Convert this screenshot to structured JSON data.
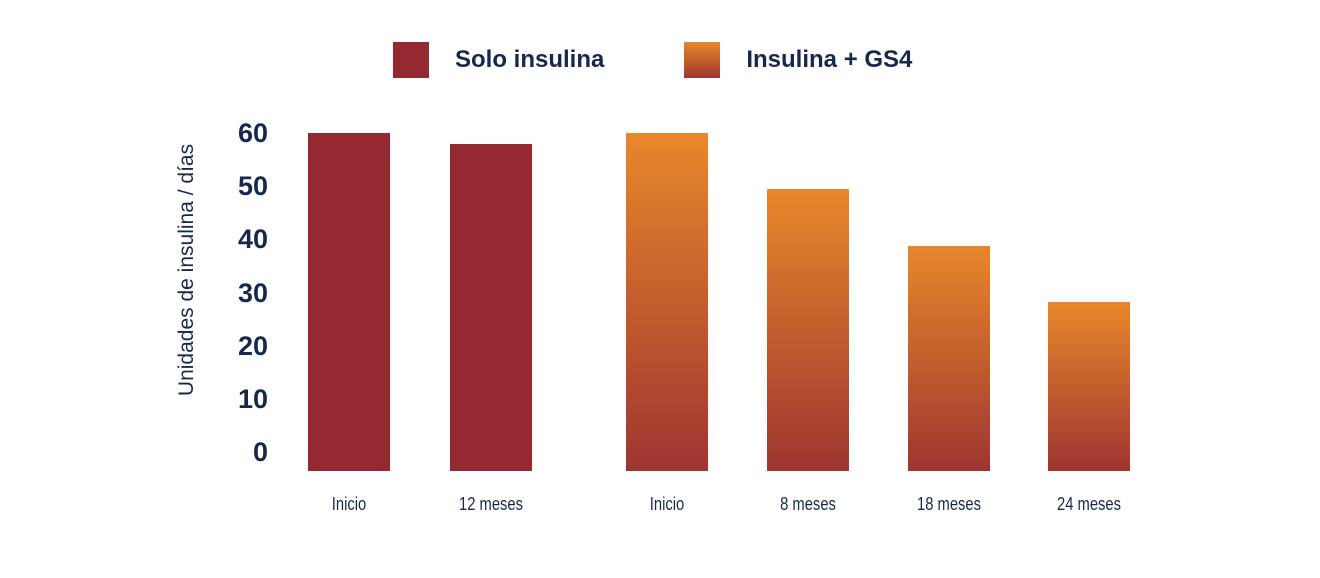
{
  "chart_data": {
    "type": "bar",
    "title": "",
    "xlabel": "",
    "ylabel": "Unidades de insulina / días",
    "ylim": [
      0,
      60
    ],
    "ytick_labels": [
      "60",
      "50",
      "40",
      "30",
      "20",
      "10",
      "0"
    ],
    "grid": false,
    "legend_position": "top",
    "legend": [
      {
        "label": "Solo insulina",
        "swatch": "solid",
        "color": "#952932"
      },
      {
        "label": "Insulina + GS4",
        "swatch": "gradient",
        "color_top": "#E8872B",
        "color_bottom": "#9E3531"
      }
    ],
    "bars": [
      {
        "category": "Inicio",
        "value": 60,
        "series": "Solo insulina"
      },
      {
        "category": "12 meses",
        "value": 58,
        "series": "Solo insulina"
      },
      {
        "category": "Inicio",
        "value": 60,
        "series": "Insulina + GS4"
      },
      {
        "category": "8 meses",
        "value": 50,
        "series": "Insulina + GS4"
      },
      {
        "category": "18 meses",
        "value": 40,
        "series": "Insulina + GS4"
      },
      {
        "category": "24 meses",
        "value": 30,
        "series": "Insulina + GS4"
      }
    ]
  },
  "colors": {
    "text": "#16294D",
    "background": "#FFFFFF",
    "solo_insulina": "#952932",
    "insulina_gs4_top": "#E8872B",
    "insulina_gs4_bottom": "#9E3531"
  }
}
